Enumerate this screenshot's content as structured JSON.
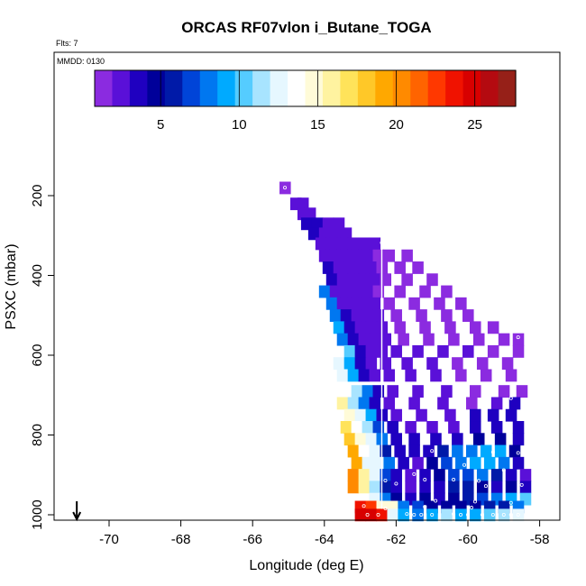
{
  "chart_data": {
    "type": "heatmap",
    "title": "ORCAS RF07vlon i_Butane_TOGA",
    "flts_label": "Flts: 7",
    "mmdd_label": "MMDD: 0130",
    "xlabel": "Longitude (deg E)",
    "ylabel": "PSXC (mbar)",
    "xlim": [
      -71.5,
      -57.5
    ],
    "ylim": [
      1010,
      70
    ],
    "y_reversed": true,
    "x_ticks": [
      -70,
      -68,
      -66,
      -64,
      -62,
      -60,
      -58
    ],
    "y_ticks": [
      200,
      400,
      600,
      800,
      1000
    ],
    "x_tick_labels": [
      "-70",
      "-68",
      "-66",
      "-64",
      "-62",
      "-60",
      "-58"
    ],
    "y_tick_labels": [
      "200",
      "400",
      "600",
      "800",
      "1000"
    ],
    "colorbar": {
      "min": 0.8,
      "max": 27.6,
      "ticks": [
        5,
        10,
        15,
        20,
        25
      ],
      "tick_labels": [
        "5",
        "10",
        "15",
        "20",
        "25"
      ],
      "colors": [
        "#8b2be0",
        "#5a10d8",
        "#1f00c0",
        "#00009a",
        "#001aa8",
        "#0044d8",
        "#0077f0",
        "#00aaff",
        "#55ccff",
        "#a8e4ff",
        "#e6f7ff",
        "#ffffff",
        "#fffbd8",
        "#fff3a0",
        "#ffe35a",
        "#ffc828",
        "#ffa800",
        "#ff8a00",
        "#ff6400",
        "#ff3800",
        "#f01200",
        "#d80000",
        "#b40a10",
        "#962018"
      ]
    },
    "vertical_line_x": -62.4,
    "arrow_x": -70.9,
    "cells": [
      [
        -65.1,
        180,
        1.5
      ],
      [
        -64.8,
        220,
        2.5
      ],
      [
        -64.6,
        220,
        2.5
      ],
      [
        -64.6,
        245,
        3.0
      ],
      [
        -64.4,
        245,
        3.0
      ],
      [
        -64.5,
        270,
        3.5
      ],
      [
        -64.2,
        270,
        3.5
      ],
      [
        -63.9,
        270,
        3.0
      ],
      [
        -63.6,
        270,
        3.0
      ],
      [
        -64.3,
        295,
        3.5
      ],
      [
        -64.0,
        295,
        2.5
      ],
      [
        -63.7,
        295,
        3.0
      ],
      [
        -63.4,
        295,
        2.5
      ],
      [
        -64.1,
        320,
        3.0
      ],
      [
        -63.8,
        320,
        2.0
      ],
      [
        -63.5,
        320,
        2.0
      ],
      [
        -63.2,
        320,
        2.0
      ],
      [
        -62.9,
        320,
        2.5
      ],
      [
        -62.6,
        320,
        2.0
      ],
      [
        -64.0,
        350,
        3.0
      ],
      [
        -63.7,
        350,
        2.0
      ],
      [
        -63.4,
        350,
        2.0
      ],
      [
        -63.1,
        350,
        2.5
      ],
      [
        -62.8,
        350,
        2.0
      ],
      [
        -62.5,
        350,
        1.5
      ],
      [
        -62.2,
        350,
        1.5
      ],
      [
        -61.7,
        350,
        1.5
      ],
      [
        -63.9,
        380,
        3.5
      ],
      [
        -63.6,
        380,
        2.5
      ],
      [
        -63.3,
        380,
        2.0
      ],
      [
        -63.0,
        380,
        2.0
      ],
      [
        -62.7,
        380,
        2.0
      ],
      [
        -62.4,
        380,
        1.5
      ],
      [
        -61.9,
        380,
        1.5
      ],
      [
        -61.4,
        380,
        1.5
      ],
      [
        -63.8,
        410,
        3.5
      ],
      [
        -63.5,
        410,
        2.5
      ],
      [
        -63.2,
        410,
        2.0
      ],
      [
        -62.9,
        410,
        2.0
      ],
      [
        -62.6,
        410,
        2.0
      ],
      [
        -62.3,
        410,
        1.5
      ],
      [
        -61.7,
        410,
        1.5
      ],
      [
        -61.0,
        410,
        1.5
      ],
      [
        -64.0,
        440,
        7.5
      ],
      [
        -63.7,
        440,
        3.0
      ],
      [
        -63.4,
        440,
        2.5
      ],
      [
        -63.1,
        440,
        2.0
      ],
      [
        -62.8,
        440,
        2.0
      ],
      [
        -62.5,
        440,
        1.5
      ],
      [
        -61.9,
        440,
        1.5
      ],
      [
        -61.2,
        440,
        1.5
      ],
      [
        -60.6,
        440,
        1.5
      ],
      [
        -63.8,
        470,
        8.0
      ],
      [
        -63.5,
        470,
        3.0
      ],
      [
        -63.2,
        470,
        2.5
      ],
      [
        -62.9,
        470,
        2.0
      ],
      [
        -62.6,
        470,
        2.0
      ],
      [
        -62.2,
        470,
        1.5
      ],
      [
        -61.5,
        470,
        1.5
      ],
      [
        -60.8,
        470,
        1.5
      ],
      [
        -60.2,
        470,
        1.5
      ],
      [
        -63.7,
        500,
        8.5
      ],
      [
        -63.4,
        500,
        3.5
      ],
      [
        -63.1,
        500,
        2.5
      ],
      [
        -62.8,
        500,
        2.0
      ],
      [
        -62.5,
        500,
        2.0
      ],
      [
        -62.0,
        500,
        1.5
      ],
      [
        -61.3,
        500,
        1.5
      ],
      [
        -60.6,
        500,
        1.5
      ],
      [
        -60.0,
        500,
        1.5
      ],
      [
        -63.6,
        530,
        9.0
      ],
      [
        -63.3,
        530,
        4.0
      ],
      [
        -63.0,
        530,
        3.0
      ],
      [
        -62.7,
        530,
        2.5
      ],
      [
        -62.4,
        530,
        2.0
      ],
      [
        -61.9,
        530,
        1.5
      ],
      [
        -61.2,
        530,
        1.5
      ],
      [
        -60.5,
        530,
        1.5
      ],
      [
        -59.8,
        530,
        1.5
      ],
      [
        -59.3,
        530,
        1.5
      ],
      [
        -63.5,
        560,
        8.5
      ],
      [
        -63.2,
        560,
        3.5
      ],
      [
        -62.9,
        560,
        3.0
      ],
      [
        -62.6,
        560,
        2.5
      ],
      [
        -62.3,
        560,
        2.0
      ],
      [
        -61.8,
        560,
        1.5
      ],
      [
        -61.1,
        560,
        1.5
      ],
      [
        -60.4,
        560,
        1.5
      ],
      [
        -59.7,
        560,
        1.5
      ],
      [
        -59.0,
        560,
        1.5
      ],
      [
        -58.6,
        560,
        1.5
      ],
      [
        -63.3,
        590,
        10.0
      ],
      [
        -63.0,
        590,
        4.0
      ],
      [
        -62.7,
        590,
        3.0
      ],
      [
        -62.4,
        590,
        2.5
      ],
      [
        -62.0,
        590,
        2.0
      ],
      [
        -61.4,
        590,
        2.0
      ],
      [
        -60.7,
        590,
        2.0
      ],
      [
        -60.0,
        590,
        2.0
      ],
      [
        -59.3,
        590,
        1.5
      ],
      [
        -58.6,
        590,
        1.5
      ],
      [
        -63.6,
        620,
        12.5
      ],
      [
        -63.3,
        620,
        9.0
      ],
      [
        -63.0,
        620,
        4.0
      ],
      [
        -62.7,
        620,
        3.0
      ],
      [
        -62.3,
        620,
        2.5
      ],
      [
        -61.7,
        620,
        2.0
      ],
      [
        -61.0,
        620,
        2.0
      ],
      [
        -60.3,
        620,
        1.5
      ],
      [
        -59.6,
        620,
        1.5
      ],
      [
        -58.9,
        620,
        1.5
      ],
      [
        -63.5,
        650,
        12.0
      ],
      [
        -63.2,
        650,
        9.0
      ],
      [
        -62.9,
        650,
        4.0
      ],
      [
        -62.6,
        650,
        3.0
      ],
      [
        -62.2,
        650,
        2.5
      ],
      [
        -61.6,
        650,
        2.0
      ],
      [
        -60.9,
        650,
        2.0
      ],
      [
        -60.2,
        650,
        1.5
      ],
      [
        -59.5,
        650,
        1.5
      ],
      [
        -58.8,
        650,
        1.5
      ],
      [
        -63.4,
        690,
        14.0
      ],
      [
        -63.1,
        690,
        11.0
      ],
      [
        -62.8,
        690,
        8.0
      ],
      [
        -62.5,
        690,
        3.5
      ],
      [
        -62.1,
        690,
        2.5
      ],
      [
        -61.4,
        690,
        2.0
      ],
      [
        -60.6,
        690,
        2.0
      ],
      [
        -59.8,
        690,
        1.5
      ],
      [
        -59.0,
        690,
        1.5
      ],
      [
        -58.5,
        690,
        1.5
      ],
      [
        -63.5,
        720,
        15.5
      ],
      [
        -63.2,
        720,
        11.0
      ],
      [
        -62.9,
        720,
        7.5
      ],
      [
        -62.6,
        720,
        4.0
      ],
      [
        -62.2,
        720,
        3.0
      ],
      [
        -61.5,
        720,
        2.0
      ],
      [
        -60.7,
        720,
        2.0
      ],
      [
        -59.9,
        720,
        1.5
      ],
      [
        -59.2,
        720,
        3.0
      ],
      [
        -58.7,
        720,
        4.0
      ],
      [
        -63.3,
        750,
        15.0
      ],
      [
        -63.0,
        750,
        12.0
      ],
      [
        -62.7,
        750,
        9.0
      ],
      [
        -62.4,
        750,
        4.0
      ],
      [
        -62.0,
        750,
        3.0
      ],
      [
        -61.3,
        750,
        2.0
      ],
      [
        -60.5,
        750,
        2.0
      ],
      [
        -59.8,
        750,
        3.5
      ],
      [
        -59.3,
        750,
        4.0
      ],
      [
        -58.8,
        750,
        3.5
      ],
      [
        -63.4,
        780,
        17.0
      ],
      [
        -63.1,
        780,
        14.0
      ],
      [
        -62.8,
        780,
        11.0
      ],
      [
        -62.5,
        780,
        6.5
      ],
      [
        -62.1,
        780,
        3.5
      ],
      [
        -61.6,
        780,
        3.0
      ],
      [
        -61.0,
        780,
        2.5
      ],
      [
        -60.4,
        780,
        3.0
      ],
      [
        -59.8,
        780,
        4.0
      ],
      [
        -59.2,
        780,
        4.0
      ],
      [
        -58.6,
        780,
        3.5
      ],
      [
        -63.3,
        810,
        18.0
      ],
      [
        -63.0,
        810,
        15.0
      ],
      [
        -62.7,
        810,
        12.0
      ],
      [
        -62.4,
        810,
        7.5
      ],
      [
        -62.0,
        810,
        4.0
      ],
      [
        -61.5,
        810,
        3.5
      ],
      [
        -60.9,
        810,
        4.0
      ],
      [
        -60.3,
        810,
        3.5
      ],
      [
        -59.7,
        810,
        4.5
      ],
      [
        -59.1,
        810,
        5.0
      ],
      [
        -58.6,
        810,
        4.0
      ],
      [
        -63.2,
        840,
        19.0
      ],
      [
        -62.9,
        840,
        14.0
      ],
      [
        -62.6,
        840,
        12.5
      ],
      [
        -62.3,
        840,
        5.5
      ],
      [
        -61.9,
        840,
        4.0
      ],
      [
        -61.5,
        840,
        3.5
      ],
      [
        -61.1,
        840,
        4.0
      ],
      [
        -60.7,
        840,
        6.0
      ],
      [
        -60.3,
        840,
        7.5
      ],
      [
        -59.9,
        840,
        8.5
      ],
      [
        -59.5,
        840,
        9.0
      ],
      [
        -59.1,
        840,
        9.5
      ],
      [
        -58.7,
        840,
        5.0
      ],
      [
        -63.1,
        870,
        19.5
      ],
      [
        -62.8,
        870,
        13.0
      ],
      [
        -62.5,
        870,
        12.5
      ],
      [
        -62.2,
        870,
        8.0
      ],
      [
        -61.8,
        870,
        4.0
      ],
      [
        -61.4,
        870,
        3.0
      ],
      [
        -61.0,
        870,
        4.5
      ],
      [
        -60.6,
        870,
        7.0
      ],
      [
        -60.2,
        870,
        8.5
      ],
      [
        -59.8,
        870,
        9.0
      ],
      [
        -59.4,
        870,
        9.0
      ],
      [
        -59.0,
        870,
        8.0
      ],
      [
        -58.6,
        870,
        4.0
      ],
      [
        -63.2,
        900,
        20.0
      ],
      [
        -62.9,
        900,
        16.0
      ],
      [
        -62.6,
        900,
        13.0
      ],
      [
        -62.3,
        900,
        7.0
      ],
      [
        -62.0,
        900,
        4.0
      ],
      [
        -61.6,
        900,
        3.0
      ],
      [
        -61.2,
        900,
        3.5
      ],
      [
        -60.8,
        900,
        5.0
      ],
      [
        -60.4,
        900,
        6.5
      ],
      [
        -60.0,
        900,
        7.0
      ],
      [
        -59.6,
        900,
        8.5
      ],
      [
        -59.2,
        900,
        6.0
      ],
      [
        -58.8,
        900,
        4.0
      ],
      [
        -58.4,
        900,
        3.0
      ],
      [
        -63.2,
        930,
        20.0
      ],
      [
        -62.9,
        930,
        16.0
      ],
      [
        -62.6,
        930,
        11.0
      ],
      [
        -62.3,
        930,
        5.5
      ],
      [
        -62.0,
        930,
        4.0
      ],
      [
        -61.6,
        930,
        3.0
      ],
      [
        -61.2,
        930,
        3.5
      ],
      [
        -60.8,
        930,
        4.0
      ],
      [
        -60.4,
        930,
        5.5
      ],
      [
        -60.0,
        930,
        6.0
      ],
      [
        -59.6,
        930,
        5.0
      ],
      [
        -59.2,
        930,
        4.0
      ],
      [
        -58.8,
        930,
        4.5
      ],
      [
        -58.4,
        930,
        3.5
      ],
      [
        -62.6,
        960,
        13.0
      ],
      [
        -62.3,
        960,
        8.5
      ],
      [
        -62.0,
        960,
        5.0
      ],
      [
        -61.6,
        960,
        4.0
      ],
      [
        -61.2,
        960,
        5.0
      ],
      [
        -60.8,
        960,
        4.0
      ],
      [
        -60.4,
        960,
        4.5
      ],
      [
        -60.0,
        960,
        6.0
      ],
      [
        -59.6,
        960,
        6.5
      ],
      [
        -59.2,
        960,
        8.0
      ],
      [
        -58.8,
        960,
        9.5
      ],
      [
        -58.4,
        960,
        10.0
      ],
      [
        -63.0,
        980,
        24.0
      ],
      [
        -62.7,
        980,
        22.5
      ],
      [
        -62.4,
        980,
        15.0
      ],
      [
        -62.1,
        980,
        14.5
      ],
      [
        -61.8,
        980,
        8.0
      ],
      [
        -61.4,
        980,
        6.5
      ],
      [
        -61.0,
        980,
        5.0
      ],
      [
        -60.6,
        980,
        5.0
      ],
      [
        -60.2,
        980,
        4.5
      ],
      [
        -59.8,
        980,
        5.0
      ],
      [
        -59.4,
        980,
        5.5
      ],
      [
        -59.0,
        980,
        5.5
      ],
      [
        -58.6,
        980,
        7.5
      ],
      [
        -63.0,
        1000,
        25.0
      ],
      [
        -62.7,
        1000,
        24.5
      ],
      [
        -62.4,
        1000,
        24.0
      ],
      [
        -62.1,
        1000,
        12.0
      ],
      [
        -61.8,
        1000,
        9.0
      ],
      [
        -61.4,
        1000,
        8.0
      ],
      [
        -61.0,
        1000,
        9.5
      ],
      [
        -60.6,
        1000,
        11.0
      ],
      [
        -60.2,
        1000,
        9.0
      ],
      [
        -59.8,
        1000,
        9.0
      ],
      [
        -59.4,
        1000,
        10.0
      ],
      [
        -59.0,
        1000,
        11.0
      ],
      [
        -58.6,
        1000,
        12.0
      ]
    ],
    "points": [
      [
        -65.1,
        180
      ],
      [
        -62.4,
        318
      ],
      [
        -58.6,
        555
      ],
      [
        -58.8,
        708
      ],
      [
        -61.0,
        840
      ],
      [
        -59.3,
        843
      ],
      [
        -58.6,
        845
      ],
      [
        -60.1,
        875
      ],
      [
        -59.0,
        888
      ],
      [
        -61.5,
        898
      ],
      [
        -61.2,
        912
      ],
      [
        -60.4,
        912
      ],
      [
        -62.3,
        914
      ],
      [
        -59.7,
        915
      ],
      [
        -62.0,
        922
      ],
      [
        -58.5,
        925
      ],
      [
        -59.5,
        928
      ],
      [
        -60.9,
        965
      ],
      [
        -59.8,
        967
      ],
      [
        -58.8,
        970
      ],
      [
        -62.9,
        978
      ],
      [
        -61.2,
        980
      ],
      [
        -62.3,
        984
      ],
      [
        -59.9,
        982
      ],
      [
        -61.7,
        998
      ],
      [
        -61.5,
        1000
      ],
      [
        -61.3,
        1000
      ],
      [
        -61.0,
        1000
      ],
      [
        -60.4,
        998
      ],
      [
        -60.2,
        1000
      ],
      [
        -60.0,
        1000
      ],
      [
        -59.6,
        1000
      ],
      [
        -59.3,
        1000
      ],
      [
        -59.0,
        1000
      ],
      [
        -58.8,
        1000
      ],
      [
        -58.6,
        1000
      ],
      [
        -62.8,
        1000
      ],
      [
        -62.5,
        1000
      ]
    ]
  }
}
